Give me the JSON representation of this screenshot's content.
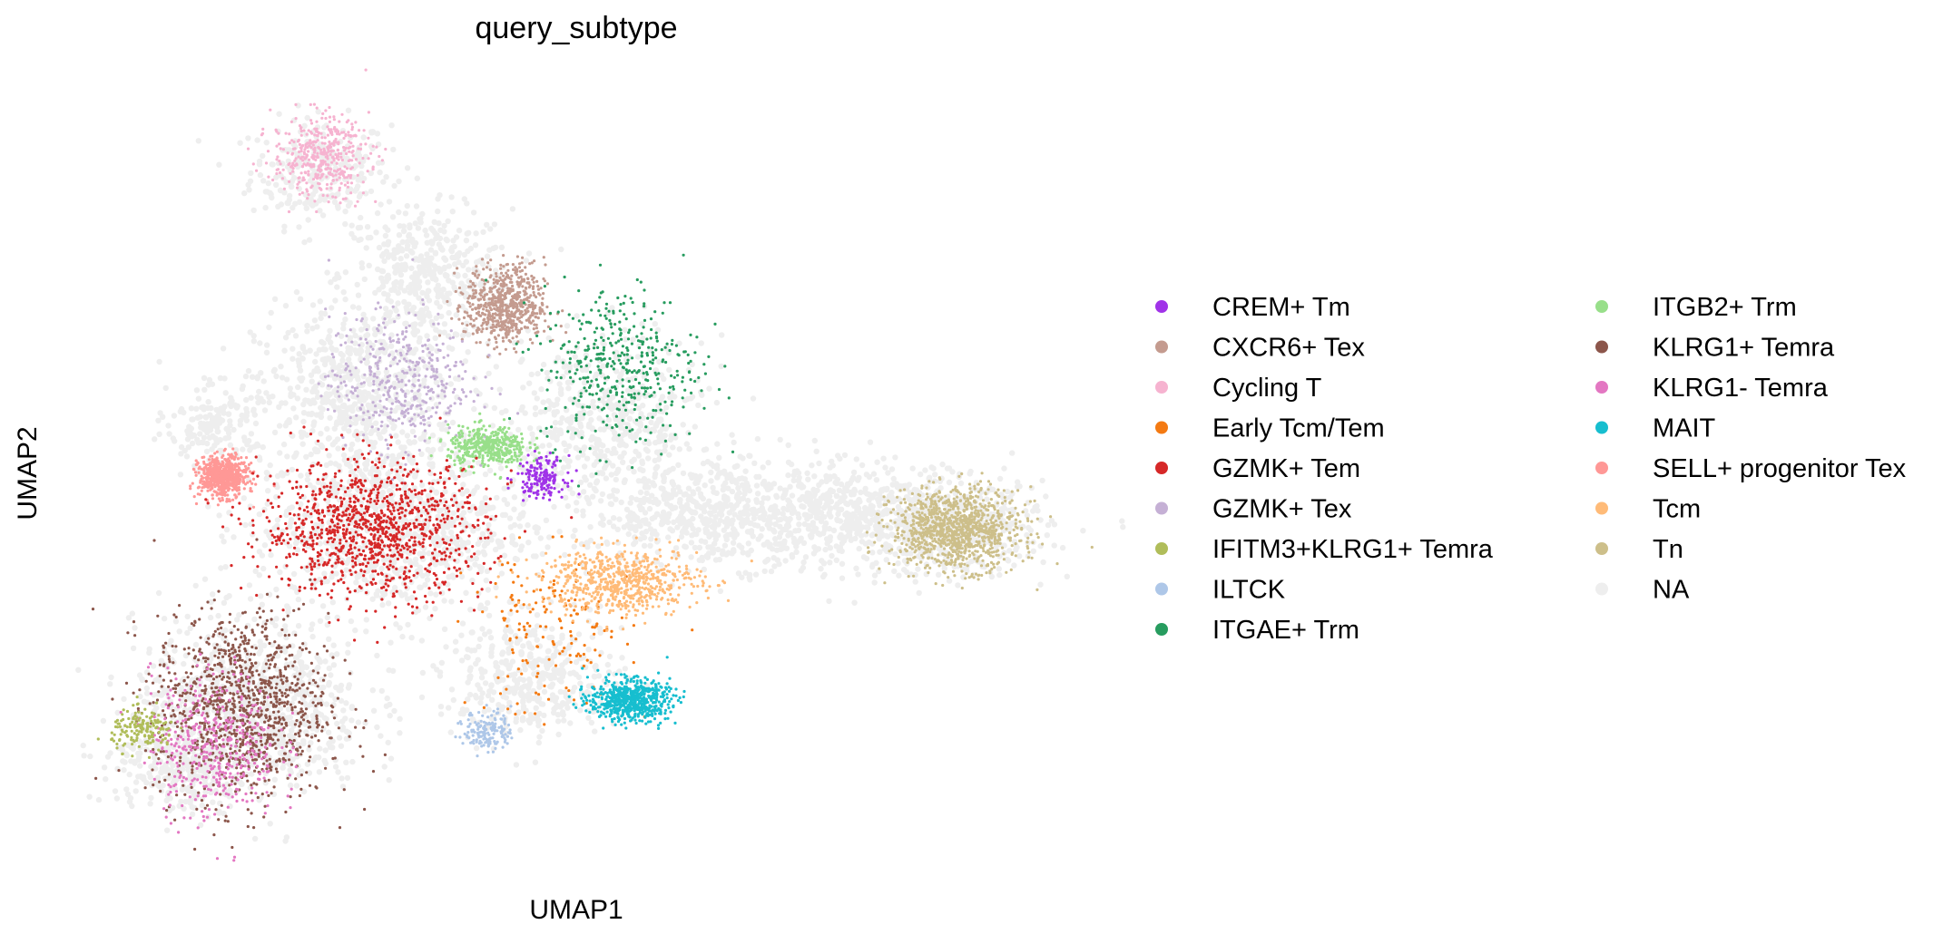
{
  "chart_data": {
    "type": "scatter",
    "title": "query_subtype",
    "xlabel": "UMAP1",
    "ylabel": "UMAP2",
    "grid": false,
    "axes_frame": false,
    "ticks": false,
    "legend_position": "right",
    "legend_columns": 2,
    "categories": [
      {
        "name": "CREM+ Tm",
        "color": "#a033e8"
      },
      {
        "name": "CXCR6+ Tex",
        "color": "#c49b8f"
      },
      {
        "name": "Cycling T",
        "color": "#f6b3d0"
      },
      {
        "name": "Early Tcm/Tem",
        "color": "#f47a12"
      },
      {
        "name": "GZMK+ Tem",
        "color": "#d62828"
      },
      {
        "name": "GZMK+ Tex",
        "color": "#c5b0d5"
      },
      {
        "name": "IFITM3+KLRG1+ Temra",
        "color": "#b0bd5a"
      },
      {
        "name": "ILTCK",
        "color": "#aec7e8"
      },
      {
        "name": "ITGAE+ Trm",
        "color": "#279c5f"
      },
      {
        "name": "ITGB2+ Trm",
        "color": "#98df8a"
      },
      {
        "name": "KLRG1+ Temra",
        "color": "#8c564b"
      },
      {
        "name": "KLRG1- Temra",
        "color": "#e377c2"
      },
      {
        "name": "MAIT",
        "color": "#17becf"
      },
      {
        "name": "SELL+ progenitor Tex",
        "color": "#ff9896"
      },
      {
        "name": "Tcm",
        "color": "#ffbb78"
      },
      {
        "name": "Tn",
        "color": "#cdbf8a"
      },
      {
        "name": "NA",
        "color": "#eeeeee"
      }
    ],
    "clusters": [
      {
        "category": "Cycling T",
        "x": [
          -9.5,
          -6.5
        ],
        "y": [
          10.5,
          13.5
        ],
        "density": "medium"
      },
      {
        "category": "CXCR6+ Tex",
        "x": [
          -4.0,
          -1.5
        ],
        "y": [
          5.5,
          8.5
        ],
        "density": "high"
      },
      {
        "category": "ITGAE+ Trm",
        "x": [
          -2.0,
          3.0
        ],
        "y": [
          2.0,
          8.0
        ],
        "density": "medium"
      },
      {
        "category": "GZMK+ Tex",
        "x": [
          -8.0,
          -3.5
        ],
        "y": [
          2.0,
          7.0
        ],
        "density": "medium"
      },
      {
        "category": "ITGB2+ Trm",
        "x": [
          -4.5,
          -2.0
        ],
        "y": [
          1.5,
          3.0
        ],
        "density": "medium"
      },
      {
        "category": "CREM+ Tm",
        "x": [
          -2.5,
          -1.0
        ],
        "y": [
          0.5,
          2.0
        ],
        "density": "low"
      },
      {
        "category": "SELL+ progenitor Tex",
        "x": [
          -11.5,
          -10.0
        ],
        "y": [
          0.5,
          2.0
        ],
        "density": "high"
      },
      {
        "category": "GZMK+ Tem",
        "x": [
          -10.0,
          -3.0
        ],
        "y": [
          -3.0,
          2.0
        ],
        "density": "very high"
      },
      {
        "category": "Early Tcm/Tem",
        "x": [
          -4.0,
          1.0
        ],
        "y": [
          -7.0,
          -1.0
        ],
        "density": "low"
      },
      {
        "category": "Tcm",
        "x": [
          -2.0,
          3.0
        ],
        "y": [
          -3.5,
          -1.0
        ],
        "density": "high"
      },
      {
        "category": "MAIT",
        "x": [
          -0.5,
          2.0
        ],
        "y": [
          -7.0,
          -5.5
        ],
        "density": "high"
      },
      {
        "category": "ILTCK",
        "x": [
          -4.0,
          -2.5
        ],
        "y": [
          -8.0,
          -6.5
        ],
        "density": "low"
      },
      {
        "category": "KLRG1+ Temra",
        "x": [
          -13.0,
          -7.5
        ],
        "y": [
          -10.0,
          -3.0
        ],
        "density": "very high"
      },
      {
        "category": "KLRG1- Temra",
        "x": [
          -13.0,
          -9.0
        ],
        "y": [
          -10.5,
          -5.0
        ],
        "density": "medium"
      },
      {
        "category": "IFITM3+KLRG1+ Temra",
        "x": [
          -14.0,
          -12.0
        ],
        "y": [
          -8.0,
          -6.5
        ],
        "density": "low"
      },
      {
        "category": "Tn",
        "x": [
          8.0,
          12.0
        ],
        "y": [
          -2.0,
          1.0
        ],
        "density": "very high"
      }
    ]
  }
}
